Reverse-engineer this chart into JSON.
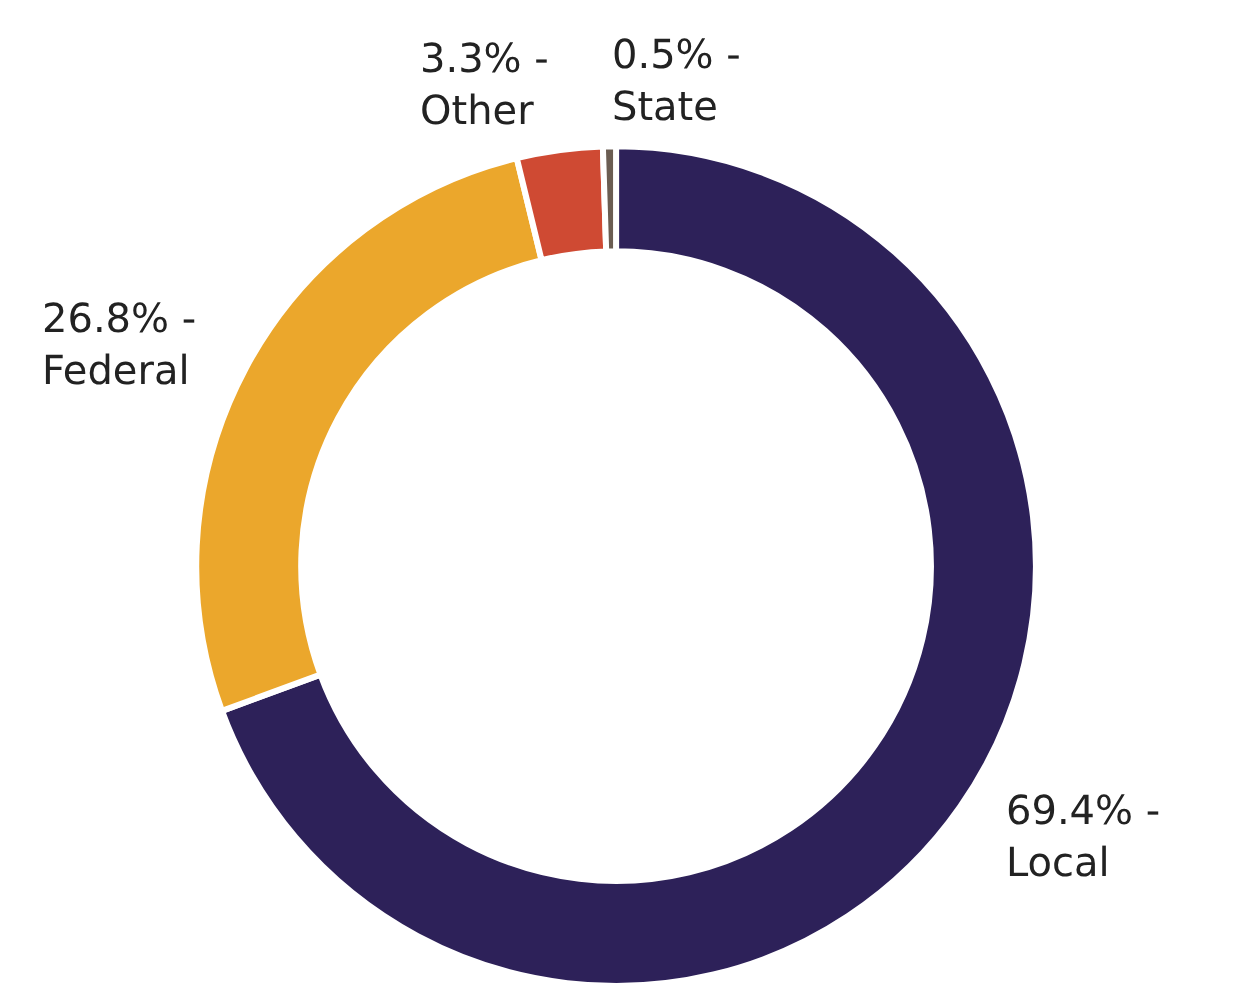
{
  "chart_data": {
    "type": "donut",
    "categories": [
      "Local",
      "Federal",
      "Other",
      "State"
    ],
    "values": [
      69.4,
      26.8,
      3.3,
      0.5
    ],
    "colors": [
      "#2d2159",
      "#eba72c",
      "#cf4a33",
      "#6b5d52"
    ],
    "value_labels": [
      "69.4% -",
      "26.8% -",
      "3.3% -",
      "0.5% -"
    ],
    "legend": false
  }
}
